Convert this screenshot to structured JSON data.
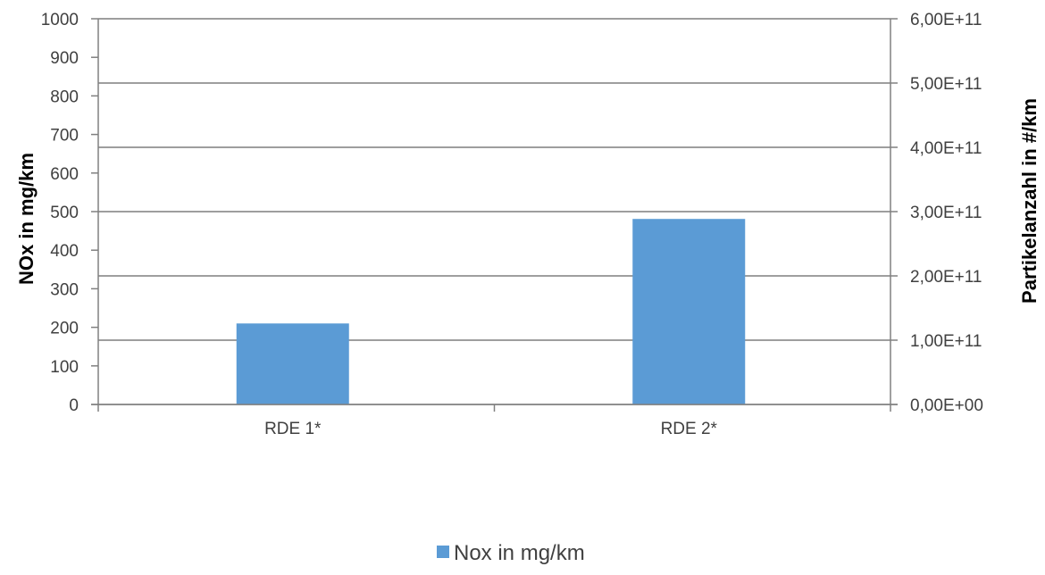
{
  "chart_data": {
    "type": "bar",
    "categories": [
      "RDE 1*",
      "RDE 2*"
    ],
    "series": [
      {
        "name": "Nox in mg/km",
        "values": [
          210,
          481
        ],
        "axis": "left",
        "color": "#5b9bd5"
      }
    ],
    "ylabel": "NOx in mg/km",
    "ylim": [
      0,
      1000
    ],
    "yticks": [
      "0",
      "100",
      "200",
      "300",
      "400",
      "500",
      "600",
      "700",
      "800",
      "900",
      "1000"
    ],
    "y2label": "Partikelanzahl  in  #/km",
    "y2lim": [
      0,
      600000000000
    ],
    "y2ticks": [
      "0,00E+00",
      "1,00E+11",
      "2,00E+11",
      "3,00E+11",
      "4,00E+11",
      "5,00E+11",
      "6,00E+11"
    ],
    "grid": "horizontal lines at secondary-axis ticks",
    "legend_position": "bottom"
  }
}
